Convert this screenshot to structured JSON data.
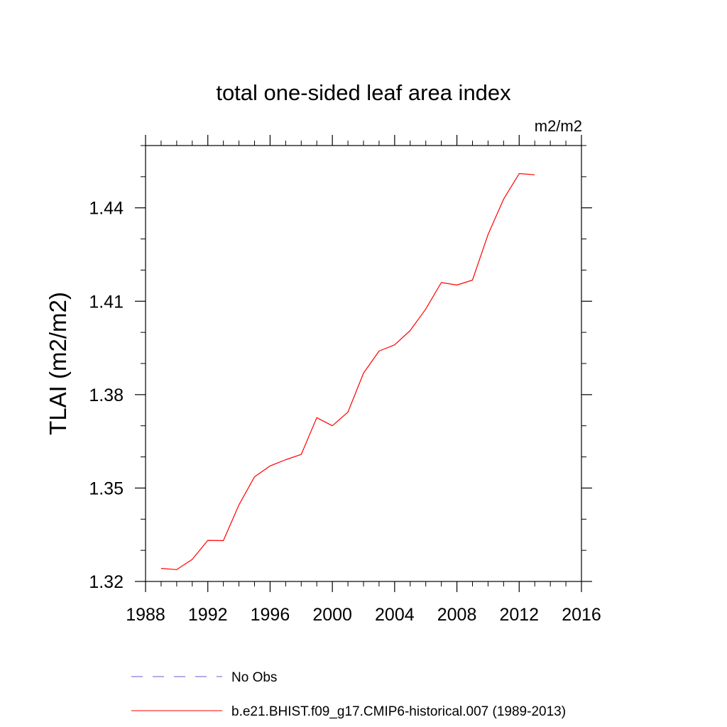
{
  "chart_data": {
    "type": "line",
    "title": "total one-sided leaf area index",
    "units": "m2/m2",
    "xlabel": "",
    "ylabel": "TLAI  (m2/m2)",
    "xlim": [
      1988,
      2016
    ],
    "ylim": [
      1.32,
      1.46
    ],
    "xticks": [
      1988,
      1992,
      1996,
      2000,
      2004,
      2008,
      2012,
      2016
    ],
    "xtick_labels": [
      "1988",
      "1992",
      "1996",
      "2000",
      "2004",
      "2008",
      "2012",
      "2016"
    ],
    "xminor_step": 1,
    "yticks": [
      1.32,
      1.35,
      1.38,
      1.41,
      1.44
    ],
    "ytick_labels": [
      "1.32",
      "1.35",
      "1.38",
      "1.41",
      "1.44"
    ],
    "yminor_step": 0.01,
    "grid": false,
    "legend_position": "bottom",
    "series": [
      {
        "name": "b.e21.BHIST.f09_g17.CMIP6-historical.007 (1989-2013)",
        "color": "#ff0000",
        "dash": "solid",
        "x": [
          1989,
          1990,
          1991,
          1992,
          1993,
          1994,
          1995,
          1996,
          1997,
          1998,
          1999,
          2000,
          2001,
          2002,
          2003,
          2004,
          2005,
          2006,
          2007,
          2008,
          2009,
          2010,
          2011,
          2012,
          2013
        ],
        "y": [
          1.3242,
          1.3238,
          1.3271,
          1.3332,
          1.3331,
          1.3446,
          1.3536,
          1.3571,
          1.3591,
          1.3608,
          1.3726,
          1.37,
          1.3744,
          1.3869,
          1.394,
          1.396,
          1.4006,
          1.4075,
          1.416,
          1.4152,
          1.4168,
          1.4314,
          1.4428,
          1.451,
          1.4506
        ]
      },
      {
        "name": "No Obs",
        "color": "#6a5acd",
        "dash": "dashed",
        "x": [],
        "y": []
      }
    ]
  }
}
